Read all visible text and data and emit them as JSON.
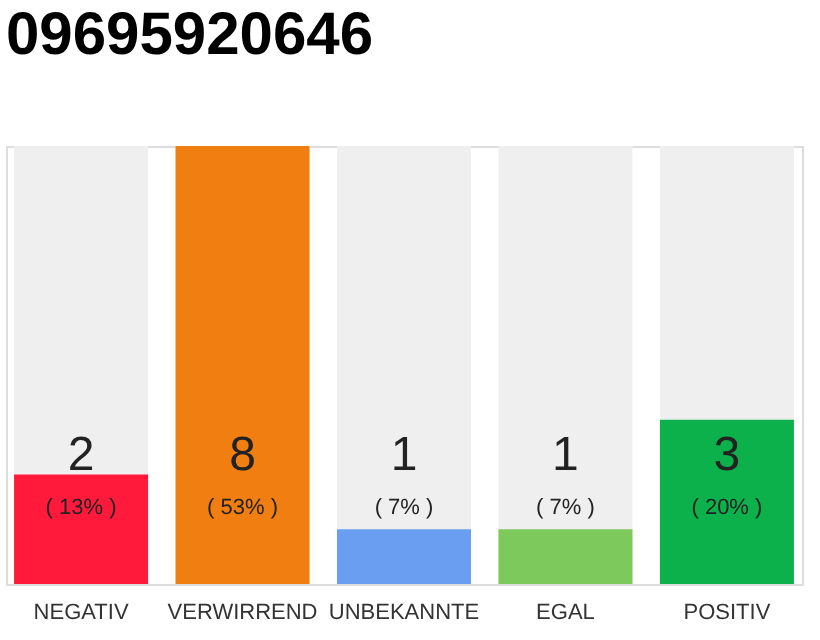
{
  "chart_data": {
    "type": "bar",
    "title": "09695920646",
    "categories": [
      "NEGATIV",
      "VERWIRREND",
      "UNBEKANNTE",
      "EGAL",
      "POSITIV"
    ],
    "values": [
      2,
      8,
      1,
      1,
      3
    ],
    "colors": [
      "#ff1a3c",
      "#f07e10",
      "#6a9ef0",
      "#7ec95c",
      "#0db14b"
    ],
    "data_labels": true,
    "annotations": [
      "( 13% )",
      "( 53% )",
      "( 7% )",
      "( 7% )",
      "( 20% )"
    ],
    "tick_labels": "x"
  }
}
